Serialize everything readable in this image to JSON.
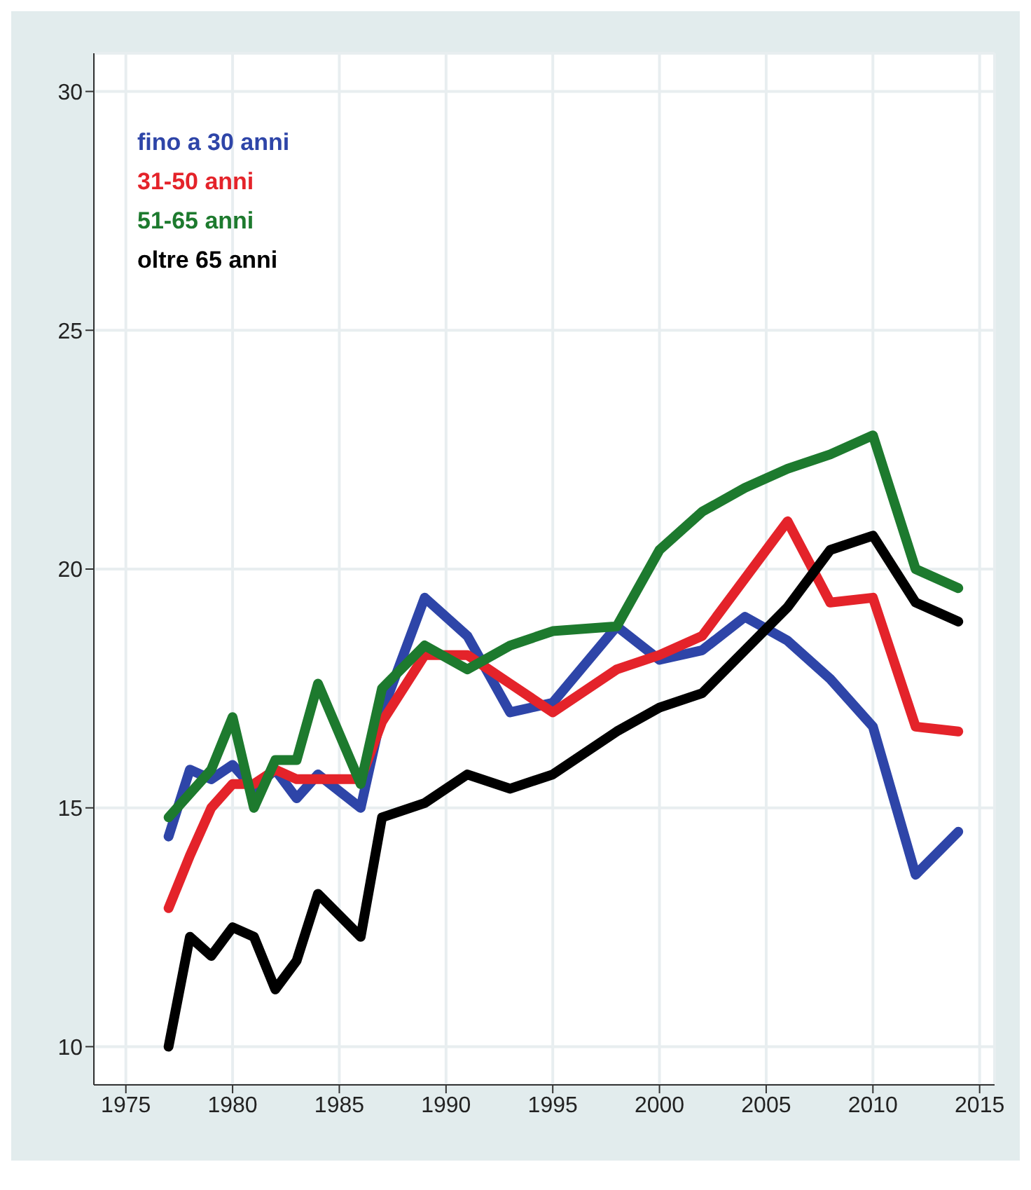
{
  "chart_data": {
    "type": "line",
    "x": [
      1977,
      1978,
      1979,
      1980,
      1981,
      1982,
      1983,
      1984,
      1986,
      1987,
      1989,
      1991,
      1993,
      1995,
      1998,
      2000,
      2002,
      2004,
      2006,
      2008,
      2010,
      2012,
      2014
    ],
    "series": [
      {
        "name": "fino a 30 anni",
        "color": "#2e45a8",
        "values": [
          14.4,
          15.8,
          15.6,
          15.9,
          15.4,
          15.8,
          15.2,
          15.7,
          15.0,
          17.0,
          19.4,
          18.6,
          17.0,
          17.2,
          18.8,
          18.1,
          18.3,
          19.0,
          18.5,
          17.7,
          16.7,
          13.6,
          14.5
        ]
      },
      {
        "name": "31-50 anni",
        "color": "#e4232a",
        "values": [
          12.9,
          14.0,
          15.0,
          15.5,
          15.5,
          15.8,
          15.6,
          15.6,
          15.6,
          16.8,
          18.2,
          18.2,
          17.6,
          17.0,
          17.9,
          18.2,
          18.6,
          19.8,
          21.0,
          19.3,
          19.4,
          16.7,
          16.6
        ]
      },
      {
        "name": "51-65 anni",
        "color": "#1d7a2e",
        "values": [
          14.8,
          15.3,
          15.8,
          16.9,
          15.0,
          16.0,
          16.0,
          17.6,
          15.5,
          17.5,
          18.4,
          17.9,
          18.4,
          18.7,
          18.8,
          20.4,
          21.2,
          21.7,
          22.1,
          22.4,
          22.8,
          20.0,
          19.6
        ]
      },
      {
        "name": "oltre 65 anni",
        "color": "#000000",
        "values": [
          10.0,
          12.3,
          11.9,
          12.5,
          12.3,
          11.2,
          11.8,
          13.2,
          12.3,
          14.8,
          15.1,
          15.7,
          15.4,
          15.7,
          16.6,
          17.1,
          17.4,
          18.3,
          19.2,
          20.4,
          20.7,
          19.3,
          18.9
        ]
      }
    ],
    "xlim": [
      1973.5,
      2015.7
    ],
    "xticks": [
      1975,
      1980,
      1985,
      1990,
      1995,
      2000,
      2005,
      2010,
      2015
    ],
    "ylim": [
      9.2,
      30.8
    ],
    "yticks": [
      10,
      15,
      20,
      25,
      30
    ],
    "grid": true,
    "legend": "top left",
    "marker": "none",
    "line_style": "solid"
  }
}
